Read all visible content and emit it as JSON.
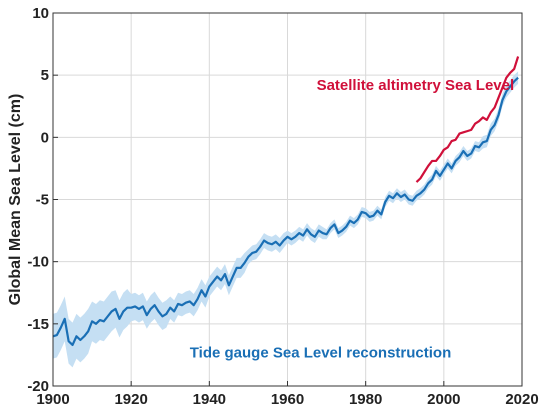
{
  "chart_data": {
    "type": "line",
    "title": "",
    "xlabel": "",
    "ylabel": "Global Mean Sea Level (cm)",
    "xlim": [
      1900,
      2020
    ],
    "ylim": [
      -20,
      10
    ],
    "xticks": [
      1900,
      1920,
      1940,
      1960,
      1980,
      2000,
      2020
    ],
    "yticks": [
      -20,
      -15,
      -10,
      -5,
      0,
      5,
      10
    ],
    "grid": true,
    "series": [
      {
        "name": "Tide gauge Sea Level reconstruction",
        "color": "#1a6fb5",
        "band_color": "#c5dff3",
        "x": [
          1900,
          1901,
          1902,
          1903,
          1904,
          1905,
          1906,
          1907,
          1908,
          1909,
          1910,
          1911,
          1912,
          1913,
          1914,
          1915,
          1916,
          1917,
          1918,
          1919,
          1920,
          1921,
          1922,
          1923,
          1924,
          1925,
          1926,
          1927,
          1928,
          1929,
          1930,
          1931,
          1932,
          1933,
          1934,
          1935,
          1936,
          1937,
          1938,
          1939,
          1940,
          1941,
          1942,
          1943,
          1944,
          1945,
          1946,
          1947,
          1948,
          1949,
          1950,
          1951,
          1952,
          1953,
          1954,
          1955,
          1956,
          1957,
          1958,
          1959,
          1960,
          1961,
          1962,
          1963,
          1964,
          1965,
          1966,
          1967,
          1968,
          1969,
          1970,
          1971,
          1972,
          1973,
          1974,
          1975,
          1976,
          1977,
          1978,
          1979,
          1980,
          1981,
          1982,
          1983,
          1984,
          1985,
          1986,
          1987,
          1988,
          1989,
          1990,
          1991,
          1992,
          1993,
          1994,
          1995,
          1996,
          1997,
          1998,
          1999,
          2000,
          2001,
          2002,
          2003,
          2004,
          2005,
          2006,
          2007,
          2008,
          2009,
          2010,
          2011,
          2012,
          2013,
          2014,
          2015,
          2016,
          2017,
          2018,
          2019
        ],
        "y": [
          -16.0,
          -15.9,
          -15.3,
          -14.6,
          -16.4,
          -16.7,
          -16.0,
          -16.3,
          -16.0,
          -15.6,
          -14.8,
          -15.0,
          -14.7,
          -14.8,
          -14.4,
          -14.0,
          -13.8,
          -14.6,
          -14.0,
          -13.7,
          -13.7,
          -13.6,
          -13.8,
          -13.6,
          -14.3,
          -13.8,
          -13.5,
          -14.0,
          -14.4,
          -14.2,
          -13.7,
          -14.0,
          -13.4,
          -13.5,
          -13.3,
          -13.2,
          -13.5,
          -13.0,
          -12.3,
          -12.8,
          -12.0,
          -11.6,
          -11.2,
          -11.5,
          -11.0,
          -11.9,
          -11.2,
          -10.5,
          -10.5,
          -10.1,
          -9.6,
          -9.3,
          -9.2,
          -8.8,
          -8.3,
          -8.5,
          -8.6,
          -8.4,
          -8.7,
          -8.3,
          -8.0,
          -8.2,
          -8.0,
          -7.7,
          -7.9,
          -7.4,
          -7.8,
          -8.0,
          -7.5,
          -7.7,
          -7.8,
          -7.3,
          -7.0,
          -7.7,
          -7.5,
          -7.2,
          -6.7,
          -6.9,
          -6.6,
          -6.0,
          -6.1,
          -6.4,
          -6.3,
          -5.9,
          -6.2,
          -5.2,
          -4.7,
          -4.9,
          -4.5,
          -4.8,
          -4.6,
          -5.0,
          -5.1,
          -4.7,
          -4.5,
          -4.2,
          -3.7,
          -3.4,
          -2.7,
          -3.1,
          -2.6,
          -2.1,
          -2.5,
          -1.9,
          -1.6,
          -1.1,
          -1.5,
          -1.3,
          -0.7,
          -0.8,
          -0.4,
          -0.3,
          0.6,
          1.0,
          1.8,
          3.0,
          3.7,
          4.1,
          4.5,
          4.8
        ],
        "band_half_width": [
          1.8,
          1.8,
          1.8,
          1.8,
          1.8,
          1.8,
          1.8,
          1.8,
          1.8,
          1.8,
          1.6,
          1.6,
          1.6,
          1.6,
          1.6,
          1.6,
          1.5,
          1.5,
          1.5,
          1.5,
          1.1,
          1.1,
          1.1,
          1.1,
          1.1,
          1.1,
          1.1,
          1.1,
          1.1,
          1.1,
          0.9,
          0.9,
          0.9,
          0.9,
          0.9,
          0.9,
          0.9,
          0.9,
          0.9,
          0.9,
          0.8,
          0.8,
          0.8,
          0.8,
          0.8,
          0.8,
          0.8,
          0.8,
          0.8,
          0.8,
          0.6,
          0.6,
          0.6,
          0.6,
          0.6,
          0.6,
          0.6,
          0.6,
          0.6,
          0.6,
          0.5,
          0.5,
          0.5,
          0.5,
          0.5,
          0.5,
          0.5,
          0.5,
          0.5,
          0.5,
          0.4,
          0.4,
          0.4,
          0.4,
          0.4,
          0.4,
          0.4,
          0.4,
          0.4,
          0.4,
          0.4,
          0.4,
          0.4,
          0.4,
          0.4,
          0.4,
          0.4,
          0.4,
          0.4,
          0.4,
          0.4,
          0.4,
          0.4,
          0.4,
          0.4,
          0.4,
          0.4,
          0.4,
          0.4,
          0.4,
          0.4,
          0.4,
          0.4,
          0.4,
          0.4,
          0.4,
          0.4,
          0.4,
          0.4,
          0.4,
          0.5,
          0.5,
          0.5,
          0.5,
          0.5,
          0.5,
          0.5,
          0.5,
          0.5,
          0.5
        ]
      },
      {
        "name": "Satellite altimetry Sea Level",
        "color": "#d0103a",
        "x": [
          1993,
          1994,
          1995,
          1996,
          1997,
          1998,
          1999,
          2000,
          2001,
          2002,
          2003,
          2004,
          2005,
          2006,
          2007,
          2008,
          2009,
          2010,
          2011,
          2012,
          2013,
          2014,
          2015,
          2016,
          2017,
          2018,
          2019
        ],
        "y": [
          -3.6,
          -3.3,
          -2.8,
          -2.3,
          -1.9,
          -1.9,
          -1.5,
          -1.0,
          -0.8,
          -0.3,
          -0.2,
          0.3,
          0.4,
          0.5,
          0.6,
          1.1,
          1.3,
          1.6,
          1.4,
          2.0,
          2.4,
          3.2,
          4.0,
          4.8,
          5.2,
          5.5,
          6.5
        ]
      }
    ],
    "annotations": [
      {
        "text": "Satellite altimetry Sea Level",
        "x": 2018,
        "y": 3.8,
        "color": "#d0103a",
        "anchor": "end"
      },
      {
        "text": "Tide gauge Sea Level reconstruction",
        "x": 1935,
        "y": -17.7,
        "color": "#1a6fb5",
        "anchor": "start"
      }
    ]
  }
}
